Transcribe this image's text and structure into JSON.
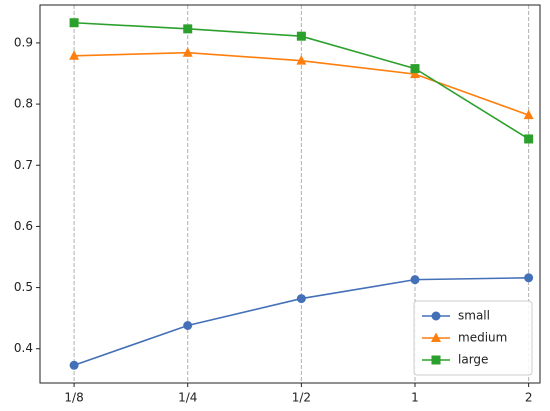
{
  "chart_data": {
    "type": "line",
    "categories": [
      "1/8",
      "1/4",
      "1/2",
      "1",
      "2"
    ],
    "series": [
      {
        "name": "small",
        "color": "#4470b8",
        "marker": "circle",
        "values": [
          0.373,
          0.438,
          0.482,
          0.513,
          0.516
        ]
      },
      {
        "name": "medium",
        "color": "#ff7f0e",
        "marker": "triangle",
        "values": [
          0.879,
          0.884,
          0.871,
          0.849,
          0.782
        ]
      },
      {
        "name": "large",
        "color": "#2ca02c",
        "marker": "square",
        "values": [
          0.933,
          0.923,
          0.911,
          0.858,
          0.743
        ]
      }
    ],
    "ylim": [
      0.344,
      0.962
    ],
    "yticks": [
      0.4,
      0.5,
      0.6,
      0.7,
      0.8,
      0.9
    ],
    "xgrid": true,
    "legend": "lower right"
  }
}
